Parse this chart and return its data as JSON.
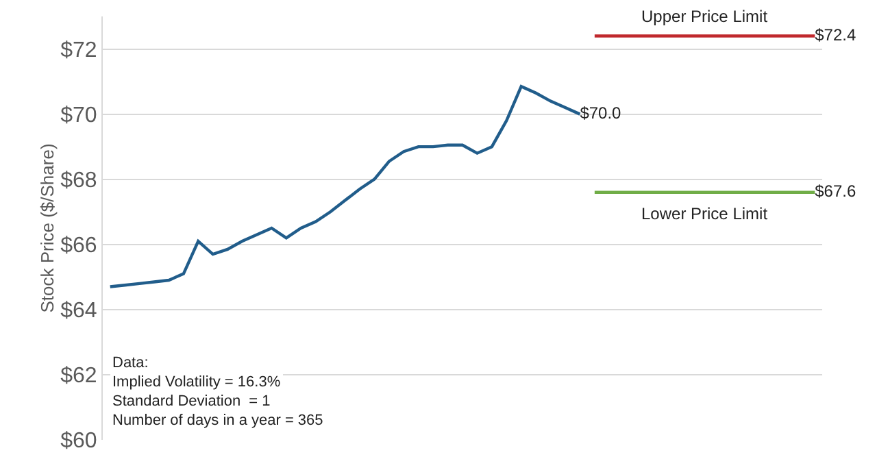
{
  "chart_data": {
    "type": "line",
    "ylabel": "Stock Price ($/Share)",
    "categories": [
      null,
      null,
      null,
      null,
      null,
      null,
      null,
      null,
      null,
      null,
      null,
      null,
      null,
      null,
      null,
      null,
      null,
      null,
      null,
      null,
      null,
      null,
      null,
      null,
      null,
      null,
      null,
      null,
      null,
      null,
      null,
      null,
      null,
      null,
      null,
      null,
      null,
      null,
      null,
      null,
      null,
      null,
      null,
      null,
      null,
      null,
      null,
      null,
      null
    ],
    "series": [
      {
        "color": "#215d8b",
        "values": [
          64.7,
          64.75,
          64.8,
          64.85,
          64.9,
          65.1,
          66.1,
          65.7,
          65.85,
          66.1,
          66.3,
          66.5,
          66.2,
          66.5,
          66.7,
          67.0,
          67.35,
          67.7,
          68.0,
          68.55,
          68.85,
          69.0,
          69.0,
          69.05,
          69.05,
          68.8,
          69.0,
          69.8,
          70.85,
          70.65,
          70.4,
          70.2,
          70.0,
          null,
          null,
          null,
          null,
          null,
          null,
          null,
          null,
          null,
          null,
          null,
          null,
          null,
          null,
          null,
          null
        ],
        "value_labels": [
          null,
          null,
          null,
          null,
          null,
          null,
          null,
          null,
          null,
          null,
          null,
          null,
          null,
          null,
          null,
          null,
          null,
          null,
          null,
          null,
          null,
          null,
          null,
          null,
          null,
          null,
          null,
          null,
          null,
          null,
          null,
          null,
          "$70.0",
          null,
          null,
          null,
          null,
          null,
          null,
          null,
          null,
          null,
          null,
          null,
          null,
          null,
          null,
          null,
          null
        ]
      },
      {
        "name": "Upper Price Limit",
        "color": "#c0282d",
        "values": [
          null,
          null,
          null,
          null,
          null,
          null,
          null,
          null,
          null,
          null,
          null,
          null,
          null,
          null,
          null,
          null,
          null,
          null,
          null,
          null,
          null,
          null,
          null,
          null,
          null,
          null,
          null,
          null,
          null,
          null,
          null,
          null,
          null,
          72.4,
          72.4,
          72.4,
          72.4,
          72.4,
          72.4,
          72.4,
          72.4,
          72.4,
          72.4,
          72.4,
          72.4,
          72.4,
          72.4,
          72.4,
          72.4
        ],
        "value_labels": [
          null,
          null,
          null,
          null,
          null,
          null,
          null,
          null,
          null,
          null,
          null,
          null,
          null,
          null,
          null,
          null,
          null,
          null,
          null,
          null,
          null,
          null,
          null,
          null,
          null,
          null,
          null,
          null,
          null,
          null,
          null,
          null,
          null,
          null,
          null,
          null,
          null,
          null,
          null,
          null,
          null,
          null,
          null,
          null,
          null,
          null,
          null,
          null,
          "$72.4"
        ]
      },
      {
        "name": "Lower Price Limit",
        "color": "#70ad47",
        "values": [
          null,
          null,
          null,
          null,
          null,
          null,
          null,
          null,
          null,
          null,
          null,
          null,
          null,
          null,
          null,
          null,
          null,
          null,
          null,
          null,
          null,
          null,
          null,
          null,
          null,
          null,
          null,
          null,
          null,
          null,
          null,
          null,
          null,
          67.6,
          67.6,
          67.6,
          67.6,
          67.6,
          67.6,
          67.6,
          67.6,
          67.6,
          67.6,
          67.6,
          67.6,
          67.6,
          67.6,
          67.6,
          67.6
        ],
        "value_labels": [
          null,
          null,
          null,
          null,
          null,
          null,
          null,
          null,
          null,
          null,
          null,
          null,
          null,
          null,
          null,
          null,
          null,
          null,
          null,
          null,
          null,
          null,
          null,
          null,
          null,
          null,
          null,
          null,
          null,
          null,
          null,
          null,
          null,
          null,
          null,
          null,
          null,
          null,
          null,
          null,
          null,
          null,
          null,
          null,
          null,
          null,
          null,
          null,
          "$67.6"
        ]
      }
    ],
    "ylim": [
      60,
      73
    ],
    "yticks": [
      {
        "value": 60,
        "label": "$60"
      },
      {
        "value": 62,
        "label": "$62"
      },
      {
        "value": 64,
        "label": "$64"
      },
      {
        "value": 66,
        "label": "$66"
      },
      {
        "value": 68,
        "label": "$68"
      },
      {
        "value": 70,
        "label": "$70"
      },
      {
        "value": 72,
        "label": "$72"
      }
    ],
    "grid": "y",
    "legend": false,
    "tick_labels": "y",
    "marker": "none",
    "line_style": "solid",
    "annotations": [
      "Data:",
      "Implied Volatility = 16.3%",
      "Standard Deviation  = 1",
      "Number of days in a year = 365"
    ]
  }
}
